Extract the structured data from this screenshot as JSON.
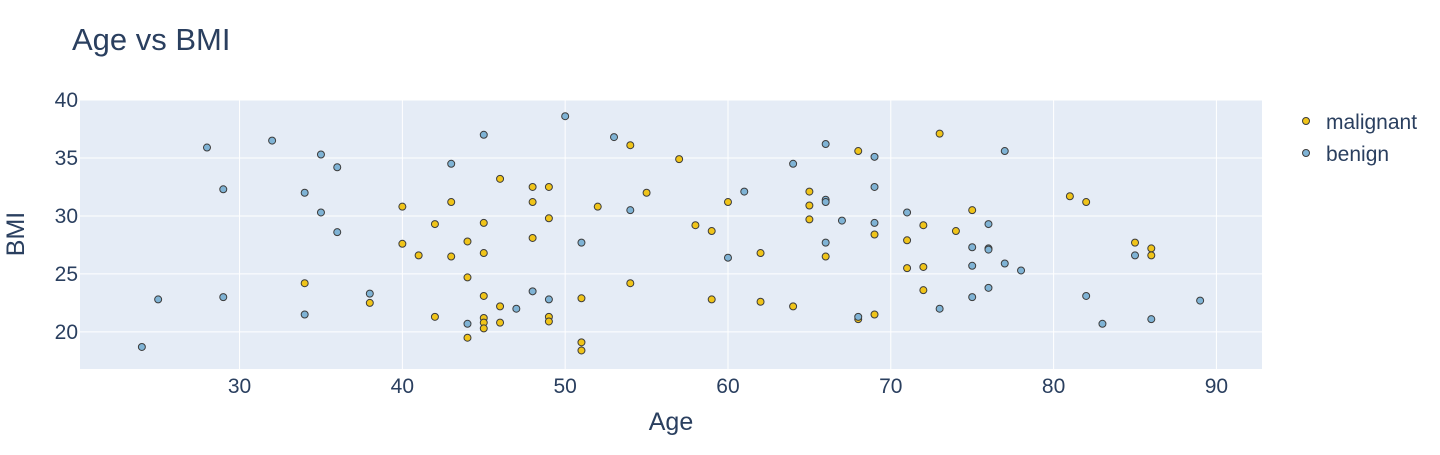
{
  "chart_data": {
    "type": "scatter",
    "title": "Age vs BMI",
    "xlabel": "Age",
    "ylabel": "BMI",
    "xlim": [
      20.2,
      92.8
    ],
    "ylim": [
      16.8,
      40.0
    ],
    "x_ticks": [
      30,
      40,
      50,
      60,
      70,
      80,
      90
    ],
    "y_ticks": [
      20,
      25,
      30,
      35,
      40
    ],
    "grid": true,
    "legend_position": "top-right, outside plot",
    "colors": {
      "plot_background": "#e5ecf6",
      "grid": "#ffffff",
      "malignant": "#f0c419",
      "benign": "#7fb3d5",
      "marker_outline": "#3c3c3c",
      "text": "#2a3f5f"
    },
    "series": [
      {
        "name": "malignant",
        "points": [
          [
            34,
            24.2
          ],
          [
            38,
            22.5
          ],
          [
            40,
            30.8
          ],
          [
            40,
            27.6
          ],
          [
            41,
            26.6
          ],
          [
            42,
            21.3
          ],
          [
            42,
            29.3
          ],
          [
            43,
            31.2
          ],
          [
            43,
            26.5
          ],
          [
            44,
            27.8
          ],
          [
            44,
            24.7
          ],
          [
            44,
            19.5
          ],
          [
            45,
            29.4
          ],
          [
            45,
            26.8
          ],
          [
            45,
            23.1
          ],
          [
            45,
            21.2
          ],
          [
            45,
            20.8
          ],
          [
            45,
            20.3
          ],
          [
            46,
            33.2
          ],
          [
            46,
            22.2
          ],
          [
            46,
            20.8
          ],
          [
            48,
            32.5
          ],
          [
            48,
            31.2
          ],
          [
            48,
            28.1
          ],
          [
            49,
            32.5
          ],
          [
            49,
            29.8
          ],
          [
            49,
            21.3
          ],
          [
            49,
            20.9
          ],
          [
            51,
            22.9
          ],
          [
            51,
            19.1
          ],
          [
            51,
            18.4
          ],
          [
            52,
            30.8
          ],
          [
            54,
            36.1
          ],
          [
            54,
            24.2
          ],
          [
            55,
            32.0
          ],
          [
            57,
            34.9
          ],
          [
            58,
            29.2
          ],
          [
            59,
            28.7
          ],
          [
            59,
            22.8
          ],
          [
            60,
            31.2
          ],
          [
            62,
            26.8
          ],
          [
            62,
            22.6
          ],
          [
            64,
            22.2
          ],
          [
            65,
            32.1
          ],
          [
            65,
            30.9
          ],
          [
            65,
            29.7
          ],
          [
            66,
            26.5
          ],
          [
            68,
            35.6
          ],
          [
            68,
            21.1
          ],
          [
            69,
            28.4
          ],
          [
            69,
            21.5
          ],
          [
            71,
            27.9
          ],
          [
            71,
            25.5
          ],
          [
            72,
            29.2
          ],
          [
            72,
            25.6
          ],
          [
            72,
            23.6
          ],
          [
            73,
            37.1
          ],
          [
            74,
            28.7
          ],
          [
            75,
            30.5
          ],
          [
            81,
            31.7
          ],
          [
            82,
            31.2
          ],
          [
            85,
            27.7
          ],
          [
            86,
            27.2
          ],
          [
            86,
            26.6
          ]
        ]
      },
      {
        "name": "benign",
        "points": [
          [
            24,
            18.7
          ],
          [
            25,
            22.8
          ],
          [
            28,
            35.9
          ],
          [
            29,
            32.3
          ],
          [
            29,
            23.0
          ],
          [
            32,
            36.5
          ],
          [
            34,
            32.0
          ],
          [
            34,
            21.5
          ],
          [
            35,
            35.3
          ],
          [
            35,
            30.3
          ],
          [
            36,
            34.2
          ],
          [
            36,
            28.6
          ],
          [
            38,
            23.3
          ],
          [
            43,
            34.5
          ],
          [
            44,
            20.7
          ],
          [
            45,
            37.0
          ],
          [
            47,
            22.0
          ],
          [
            48,
            23.5
          ],
          [
            49,
            22.8
          ],
          [
            50,
            38.6
          ],
          [
            51,
            27.7
          ],
          [
            53,
            36.8
          ],
          [
            54,
            30.5
          ],
          [
            60,
            26.4
          ],
          [
            61,
            32.1
          ],
          [
            64,
            34.5
          ],
          [
            66,
            36.2
          ],
          [
            66,
            31.4
          ],
          [
            66,
            31.2
          ],
          [
            66,
            27.7
          ],
          [
            67,
            29.6
          ],
          [
            68,
            21.3
          ],
          [
            69,
            35.1
          ],
          [
            69,
            32.5
          ],
          [
            69,
            29.4
          ],
          [
            71,
            30.3
          ],
          [
            73,
            22.0
          ],
          [
            75,
            27.3
          ],
          [
            75,
            25.7
          ],
          [
            75,
            23.0
          ],
          [
            76,
            29.3
          ],
          [
            76,
            27.2
          ],
          [
            76,
            27.1
          ],
          [
            76,
            23.8
          ],
          [
            77,
            35.6
          ],
          [
            77,
            25.9
          ],
          [
            78,
            25.3
          ],
          [
            82,
            23.1
          ],
          [
            83,
            20.7
          ],
          [
            85,
            26.6
          ],
          [
            86,
            21.1
          ],
          [
            89,
            22.7
          ]
        ]
      }
    ]
  }
}
